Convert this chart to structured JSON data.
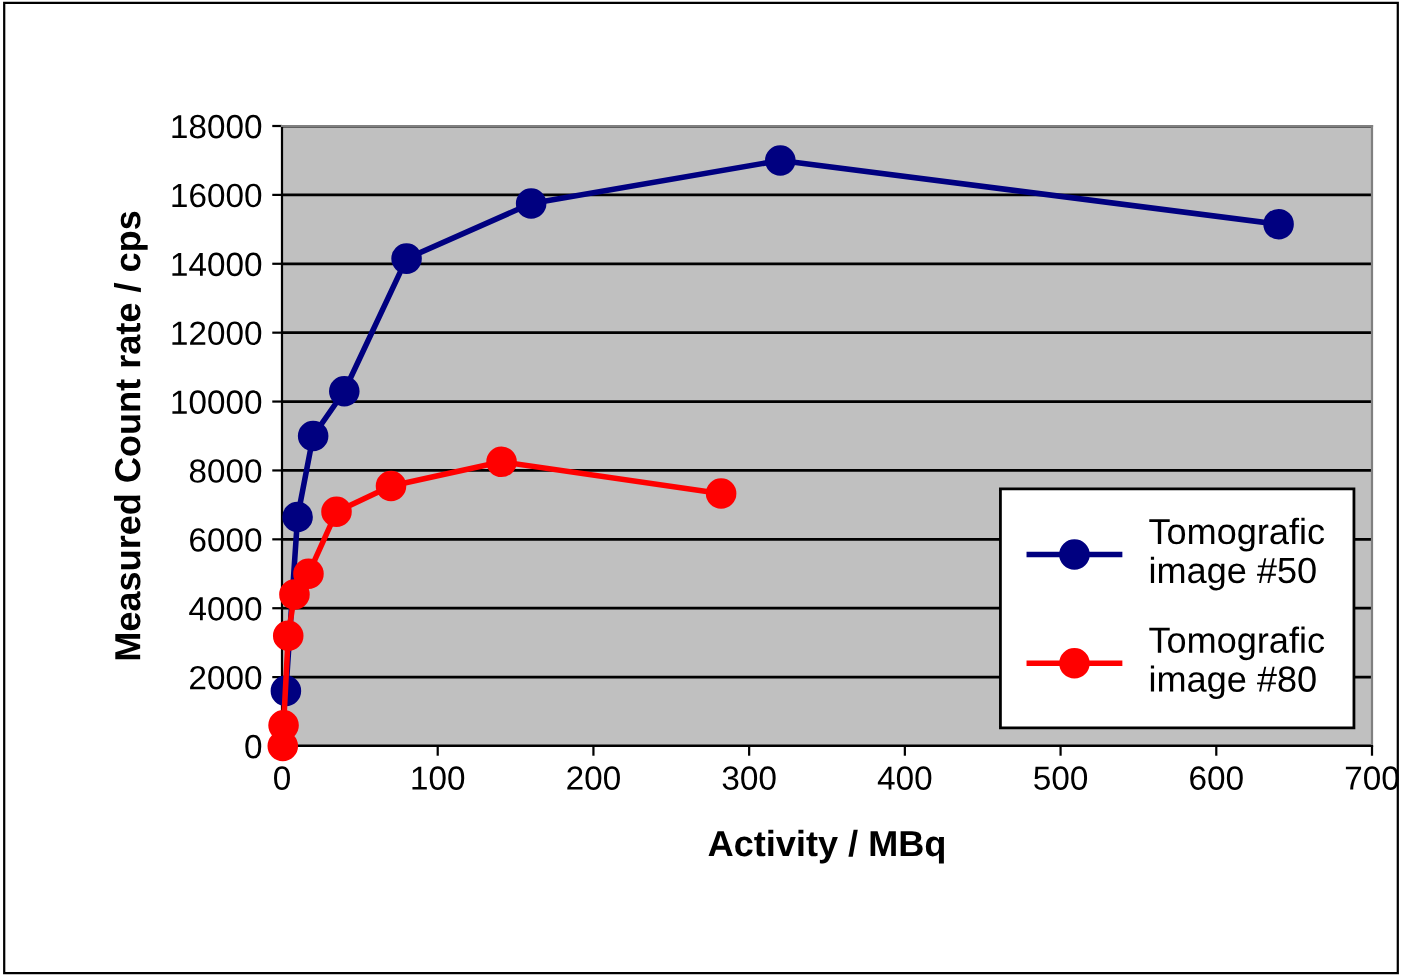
{
  "chart_data": {
    "type": "line",
    "xlabel": "Activity / MBq",
    "ylabel": "Measured Count rate / cps",
    "series": [
      {
        "name": "Tomografic\nimage #50",
        "color": "#000080",
        "x": [
          2.5,
          10,
          20,
          40,
          80,
          160,
          320,
          640
        ],
        "values": [
          1600,
          6650,
          9000,
          10300,
          14150,
          15750,
          17000,
          15150
        ]
      },
      {
        "name": "Tomografic\nimage #80",
        "color": "#ff0000",
        "x": [
          0.5,
          1,
          4,
          8,
          17,
          35,
          70,
          141,
          282
        ],
        "values": [
          0,
          600,
          3200,
          4400,
          5000,
          6800,
          7550,
          8250,
          7330
        ]
      }
    ],
    "xlim": [
      0,
      700
    ],
    "xticks": [
      0,
      100,
      200,
      300,
      400,
      500,
      600,
      700
    ],
    "ylim": [
      0,
      18000
    ],
    "yticks": [
      0,
      2000,
      4000,
      6000,
      8000,
      10000,
      12000,
      14000,
      16000,
      18000
    ],
    "grid": "y",
    "legend": "bottom right",
    "marker": "circle",
    "line_style": "solid"
  }
}
